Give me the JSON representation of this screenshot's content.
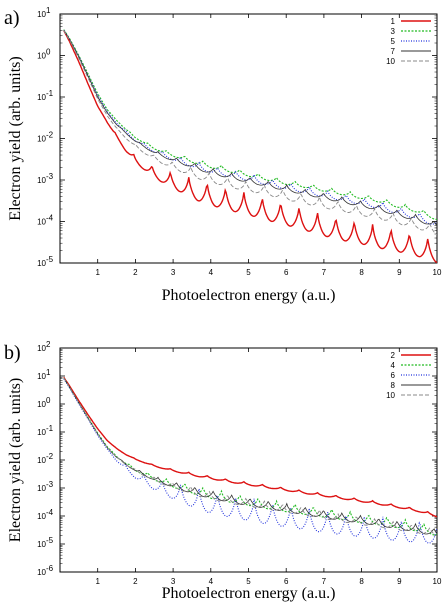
{
  "chart_data": [
    {
      "type": "line",
      "panel_label": "a)",
      "xlabel": "Photoelectron energy (a.u.)",
      "ylabel": "Electron yield (arb. units)",
      "xlim": [
        0,
        10
      ],
      "ylim": [
        1e-05,
        10
      ],
      "y_scale": "log",
      "x_ticks": [
        "1",
        "2",
        "3",
        "4",
        "5",
        "6",
        "7",
        "8",
        "9",
        "10"
      ],
      "y_ticks": [
        {
          "v": 1e-05,
          "label": "10",
          "exp": "-5"
        },
        {
          "v": 0.0001,
          "label": "10",
          "exp": "-4"
        },
        {
          "v": 0.001,
          "label": "10",
          "exp": "-3"
        },
        {
          "v": 0.01,
          "label": "10",
          "exp": "-2"
        },
        {
          "v": 0.1,
          "label": "10",
          "exp": "-1"
        },
        {
          "v": 1,
          "label": "10",
          "exp": "0"
        },
        {
          "v": 10,
          "label": "10",
          "exp": "1"
        }
      ],
      "legend_position": "top-right",
      "x": [
        0.1,
        0.25,
        0.5,
        0.75,
        1.0,
        1.25,
        1.5,
        1.75,
        2.0,
        2.5,
        3.0,
        3.5,
        4.0,
        4.5,
        5.0,
        5.5,
        6.0,
        6.5,
        7.0,
        7.5,
        8.0,
        8.5,
        9.0,
        9.5,
        10.0
      ],
      "series": [
        {
          "name": "1",
          "color": "#dd1111",
          "dash": "",
          "width": 1.4,
          "ripple": 0.55,
          "values": [
            4,
            2.2,
            0.7,
            0.2,
            0.06,
            0.025,
            0.012,
            0.006,
            0.0035,
            0.0018,
            0.0012,
            0.00085,
            0.0006,
            0.00045,
            0.00035,
            0.00026,
            0.0002,
            0.00015,
            0.00011,
            8.5e-05,
            7e-05,
            5.5e-05,
            4.5e-05,
            3.5e-05,
            2.5e-05
          ]
        },
        {
          "name": "3",
          "color": "#22bb22",
          "dash": "2,1.5",
          "width": 1.1,
          "ripple": 0.12,
          "values": [
            4.2,
            2.6,
            1.0,
            0.35,
            0.12,
            0.05,
            0.028,
            0.017,
            0.011,
            0.0062,
            0.0043,
            0.0032,
            0.0024,
            0.0019,
            0.0015,
            0.0012,
            0.00095,
            0.0008,
            0.00065,
            0.00053,
            0.00043,
            0.00035,
            0.00026,
            0.0002,
            0.00013
          ]
        },
        {
          "name": "5",
          "color": "#2233dd",
          "dash": "1,1.5",
          "width": 1.1,
          "ripple": 0.18,
          "values": [
            4.1,
            2.5,
            0.95,
            0.32,
            0.11,
            0.045,
            0.024,
            0.015,
            0.0095,
            0.0055,
            0.0037,
            0.0027,
            0.002,
            0.0016,
            0.0013,
            0.001,
            0.0008,
            0.00065,
            0.00052,
            0.00042,
            0.00034,
            0.00027,
            0.0002,
            0.00015,
            0.0001
          ]
        },
        {
          "name": "7",
          "color": "#333333",
          "dash": "",
          "width": 0.8,
          "ripple": 0.15,
          "values": [
            4.1,
            2.5,
            0.92,
            0.31,
            0.1,
            0.042,
            0.022,
            0.014,
            0.009,
            0.005,
            0.0034,
            0.0025,
            0.0018,
            0.0014,
            0.0011,
            0.00088,
            0.0007,
            0.00056,
            0.00045,
            0.00036,
            0.00029,
            0.00023,
            0.00017,
            0.00013,
            9e-05
          ]
        },
        {
          "name": "10",
          "color": "#888888",
          "dash": "4,2",
          "width": 0.9,
          "ripple": 0.25,
          "values": [
            4,
            2.4,
            0.85,
            0.28,
            0.09,
            0.036,
            0.018,
            0.011,
            0.007,
            0.0038,
            0.0025,
            0.0018,
            0.0013,
            0.001,
            0.0008,
            0.00065,
            0.0005,
            0.0004,
            0.00032,
            0.00026,
            0.00021,
            0.00017,
            0.00013,
            0.0001,
            7e-05
          ]
        }
      ]
    },
    {
      "type": "line",
      "panel_label": "b)",
      "xlabel": "Photoelectron energy (a.u.)",
      "ylabel": "Electron yield (arb. units)",
      "xlim": [
        0,
        10
      ],
      "ylim": [
        1e-06,
        100
      ],
      "y_scale": "log",
      "x_ticks": [
        "1",
        "2",
        "3",
        "4",
        "5",
        "6",
        "7",
        "8",
        "9",
        "10"
      ],
      "y_ticks": [
        {
          "v": 1e-06,
          "label": "10",
          "exp": "-6"
        },
        {
          "v": 1e-05,
          "label": "10",
          "exp": "-5"
        },
        {
          "v": 0.0001,
          "label": "10",
          "exp": "-4"
        },
        {
          "v": 0.001,
          "label": "10",
          "exp": "-3"
        },
        {
          "v": 0.01,
          "label": "10",
          "exp": "-2"
        },
        {
          "v": 0.1,
          "label": "10",
          "exp": "-1"
        },
        {
          "v": 1,
          "label": "10",
          "exp": "0"
        },
        {
          "v": 10,
          "label": "10",
          "exp": "1"
        },
        {
          "v": 100,
          "label": "10",
          "exp": "2"
        }
      ],
      "legend_position": "top-right",
      "x": [
        0.1,
        0.25,
        0.5,
        0.75,
        1.0,
        1.25,
        1.5,
        1.75,
        2.0,
        2.5,
        3.0,
        3.5,
        4.0,
        4.5,
        5.0,
        5.5,
        6.0,
        6.5,
        7.0,
        7.5,
        8.0,
        8.5,
        9.0,
        9.5,
        10.0
      ],
      "series": [
        {
          "name": "2",
          "color": "#dd1111",
          "dash": "",
          "width": 1.4,
          "ripple": 0.1,
          "values": [
            9,
            4.5,
            1.3,
            0.4,
            0.13,
            0.05,
            0.026,
            0.016,
            0.011,
            0.0065,
            0.0045,
            0.0033,
            0.0025,
            0.0019,
            0.0015,
            0.0012,
            0.00095,
            0.00075,
            0.0006,
            0.00048,
            0.00038,
            0.0003,
            0.00023,
            0.00017,
            0.00011
          ]
        },
        {
          "name": "4",
          "color": "#22bb22",
          "dash": "2,1.5",
          "width": 1.1,
          "ripple": 0.35,
          "values": [
            8.5,
            4,
            1.1,
            0.32,
            0.09,
            0.03,
            0.014,
            0.008,
            0.005,
            0.0026,
            0.0016,
            0.0011,
            0.00075,
            0.00055,
            0.00042,
            0.00032,
            0.00025,
            0.0002,
            0.00016,
            0.00013,
            0.0001,
            8.5e-05,
            6.5e-05,
            5e-05,
            3.5e-05
          ]
        },
        {
          "name": "6",
          "color": "#2233dd",
          "dash": "1,1.5",
          "width": 1.1,
          "ripple": 0.85,
          "values": [
            8,
            3.8,
            1.0,
            0.28,
            0.075,
            0.025,
            0.011,
            0.006,
            0.0035,
            0.0018,
            0.0011,
            0.00075,
            0.0005,
            0.00036,
            0.00027,
            0.0002,
            0.00016,
            0.00013,
            0.0001,
            8.5e-05,
            7e-05,
            6e-05,
            5e-05,
            4.5e-05,
            4e-05
          ]
        },
        {
          "name": "8",
          "color": "#333333",
          "dash": "",
          "width": 0.8,
          "ripple": 0.3,
          "values": [
            8.5,
            4,
            1.1,
            0.3,
            0.085,
            0.028,
            0.013,
            0.0075,
            0.0047,
            0.0024,
            0.0015,
            0.001,
            0.0007,
            0.0005,
            0.00038,
            0.0003,
            0.00023,
            0.00018,
            0.00014,
            0.00011,
            9e-05,
            7e-05,
            5.5e-05,
            4.2e-05,
            3e-05
          ]
        },
        {
          "name": "10",
          "color": "#888888",
          "dash": "4,2",
          "width": 0.9,
          "ripple": 0.3,
          "values": [
            8.5,
            4,
            1.1,
            0.3,
            0.085,
            0.028,
            0.013,
            0.0075,
            0.0046,
            0.0023,
            0.0014,
            0.00095,
            0.00065,
            0.00047,
            0.00036,
            0.00028,
            0.00022,
            0.00017,
            0.00013,
            0.0001,
            8e-05,
            6.5e-05,
            5e-05,
            4e-05,
            3e-05
          ]
        }
      ]
    }
  ]
}
